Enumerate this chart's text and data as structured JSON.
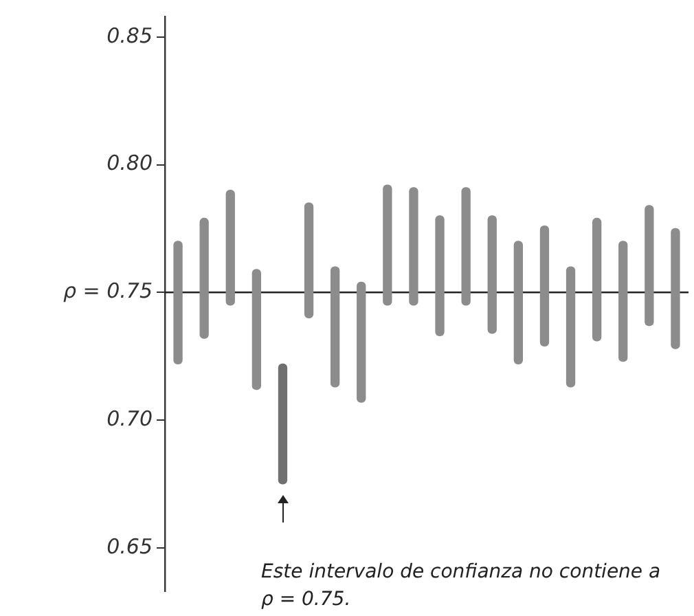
{
  "chart_data": {
    "type": "bar",
    "categories": [
      null,
      null,
      null,
      null,
      null,
      null,
      null,
      null,
      null,
      null,
      null,
      null,
      null,
      null,
      null,
      null,
      null,
      null,
      null,
      null
    ],
    "base": [
      0.722,
      0.732,
      0.745,
      0.712,
      0.675,
      0.74,
      0.713,
      0.707,
      0.745,
      0.745,
      0.733,
      0.745,
      0.734,
      0.722,
      0.729,
      0.713,
      0.731,
      0.723,
      0.737,
      0.728
    ],
    "values": [
      0.048,
      0.047,
      0.045,
      0.047,
      0.047,
      0.045,
      0.047,
      0.047,
      0.047,
      0.046,
      0.047,
      0.046,
      0.046,
      0.048,
      0.047,
      0.047,
      0.048,
      0.047,
      0.047,
      0.047
    ],
    "colors": [
      "#8c8c8c",
      "#8c8c8c",
      "#8c8c8c",
      "#8c8c8c",
      "#707070",
      "#8c8c8c",
      "#8c8c8c",
      "#8c8c8c",
      "#8c8c8c",
      "#8c8c8c",
      "#8c8c8c",
      "#8c8c8c",
      "#8c8c8c",
      "#8c8c8c",
      "#8c8c8c",
      "#8c8c8c",
      "#8c8c8c",
      "#8c8c8c",
      "#8c8c8c",
      "#8c8c8c"
    ],
    "ylim": [
      0.633,
      0.858
    ],
    "yticks": [
      0.65,
      {
        "value": 0.7,
        "label": "0.70"
      },
      {
        "value": 0.75,
        "label": "ρ = 0.75"
      },
      {
        "value": 0.8,
        "label": "0.80"
      },
      0.85
    ],
    "ref_lines": [
      {
        "axis": "y",
        "value": 0.75,
        "color": "#222222"
      }
    ],
    "annotations": [
      "Este intervalo de confianza no contiene a ρ = 0.75."
    ],
    "tick_labels": "y",
    "grid": false,
    "legend": false
  }
}
